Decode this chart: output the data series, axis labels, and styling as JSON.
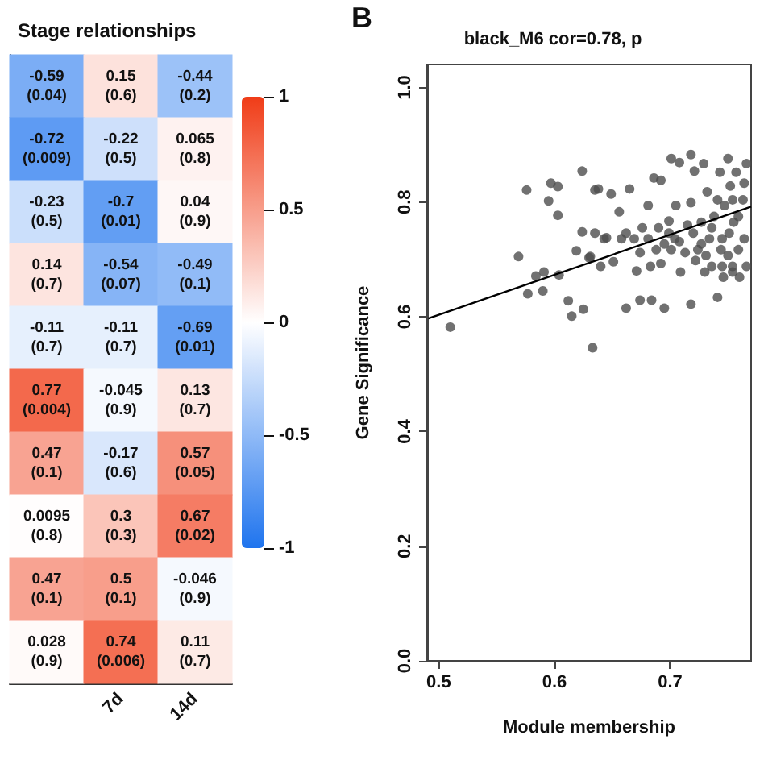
{
  "chart_data": [
    {
      "type": "heatmap",
      "title": "Stage relationships",
      "categories": [
        null,
        "7d",
        "14d"
      ],
      "y_categories": [
        null,
        null,
        null,
        null,
        null,
        null,
        null,
        null,
        null,
        null
      ],
      "cells": [
        [
          -0.59,
          0.15,
          -0.44
        ],
        [
          -0.72,
          -0.22,
          0.065
        ],
        [
          -0.23,
          -0.7,
          0.04
        ],
        [
          0.14,
          -0.54,
          -0.49
        ],
        [
          -0.11,
          -0.11,
          -0.69
        ],
        [
          0.77,
          -0.045,
          0.13
        ],
        [
          0.47,
          -0.17,
          0.57
        ],
        [
          0.0095,
          0.3,
          0.67
        ],
        [
          0.47,
          0.5,
          -0.046
        ],
        [
          0.028,
          0.74,
          0.11
        ]
      ],
      "cell_labels": [
        [
          "-0.59\n(0.04)",
          "0.15\n(0.6)",
          "-0.44\n(0.2)"
        ],
        [
          "-0.72\n(0.009)",
          "-0.22\n(0.5)",
          "0.065\n(0.8)"
        ],
        [
          "-0.23\n(0.5)",
          "-0.7\n(0.01)",
          "0.04\n(0.9)"
        ],
        [
          "0.14\n(0.7)",
          "-0.54\n(0.07)",
          "-0.49\n(0.1)"
        ],
        [
          "-0.11\n(0.7)",
          "-0.11\n(0.7)",
          "-0.69\n(0.01)"
        ],
        [
          "0.77\n(0.004)",
          "-0.045\n(0.9)",
          "0.13\n(0.7)"
        ],
        [
          "0.47\n(0.1)",
          "-0.17\n(0.6)",
          "0.57\n(0.05)"
        ],
        [
          "0.0095\n(0.8)",
          "0.3\n(0.3)",
          "0.67\n(0.02)"
        ],
        [
          "0.47\n(0.1)",
          "0.5\n(0.1)",
          "-0.046\n(0.9)"
        ],
        [
          "0.028\n(0.9)",
          "0.74\n(0.006)",
          "0.11\n(0.7)"
        ]
      ],
      "clim": [
        -1,
        1
      ],
      "cticks": [
        -1,
        -0.5,
        0,
        0.5,
        1
      ],
      "tick_labels": "x"
    },
    {
      "type": "scatter",
      "title": "black_M6 cor=0.78, p",
      "xlabel": "Module membership",
      "ylabel": "Gene Significance",
      "annotations": [
        "B"
      ],
      "xlim": [
        0.49,
        0.77
      ],
      "ylim": [
        0,
        1.04
      ],
      "xticks": [
        0.5,
        0.6,
        0.7
      ],
      "yticks": [
        {
          "value": 0,
          "label": "0.0"
        },
        0.2,
        0.4,
        0.6,
        0.8,
        {
          "value": 1,
          "label": "1.0"
        }
      ],
      "series": [
        {
          "color": "#4d4d4d",
          "marker": "circle",
          "x": [
            0.51,
            0.569,
            0.577,
            0.584,
            0.591,
            0.59,
            0.604,
            0.576,
            0.595,
            0.597,
            0.603,
            0.603,
            0.612,
            0.615,
            0.619,
            0.624,
            0.624,
            0.625,
            0.631,
            0.633,
            0.635,
            0.638,
            0.64,
            0.645,
            0.649,
            0.651,
            0.656,
            0.658,
            0.662,
            0.665,
            0.669,
            0.671,
            0.674,
            0.676,
            0.681,
            0.684,
            0.686,
            0.688,
            0.692,
            0.692,
            0.695,
            0.699,
            0.701,
            0.704,
            0.705,
            0.708,
            0.709,
            0.718,
            0.718,
            0.72,
            0.718,
            0.721,
            0.724,
            0.727,
            0.729,
            0.73,
            0.732,
            0.734,
            0.736,
            0.738,
            0.741,
            0.743,
            0.744,
            0.746,
            0.747,
            0.75,
            0.751,
            0.752,
            0.754,
            0.755,
            0.757,
            0.759,
            0.76,
            0.763,
            0.764,
            0.766,
            0.766,
            0.681,
            0.695,
            0.701,
            0.708,
            0.713,
            0.715,
            0.699,
            0.69,
            0.722,
            0.727,
            0.731,
            0.736,
            0.741,
            0.745,
            0.75,
            0.754,
            0.759,
            0.764,
            0.754,
            0.745,
            0.683,
            0.674,
            0.662,
            0.643,
            0.635,
            0.63
          ],
          "values": [
            0.582,
            0.705,
            0.64,
            0.671,
            0.678,
            0.645,
            0.673,
            0.821,
            0.802,
            0.833,
            0.827,
            0.777,
            0.628,
            0.601,
            0.715,
            0.854,
            0.748,
            0.613,
            0.705,
            0.546,
            0.821,
            0.823,
            0.688,
            0.738,
            0.814,
            0.696,
            0.783,
            0.736,
            0.615,
            0.823,
            0.736,
            0.68,
            0.629,
            0.755,
            0.794,
            0.629,
            0.842,
            0.717,
            0.838,
            0.693,
            0.615,
            0.767,
            0.876,
            0.736,
            0.794,
            0.869,
            0.678,
            0.883,
            0.622,
            0.746,
            0.799,
            0.854,
            0.717,
            0.765,
            0.867,
            0.678,
            0.818,
            0.736,
            0.688,
            0.775,
            0.634,
            0.852,
            0.717,
            0.669,
            0.794,
            0.876,
            0.746,
            0.828,
            0.688,
            0.765,
            0.852,
            0.717,
            0.669,
            0.804,
            0.736,
            0.867,
            0.688,
            0.736,
            0.727,
            0.717,
            0.731,
            0.712,
            0.76,
            0.746,
            0.755,
            0.698,
            0.727,
            0.707,
            0.755,
            0.804,
            0.736,
            0.707,
            0.804,
            0.775,
            0.833,
            0.678,
            0.688,
            0.688,
            0.712,
            0.746,
            0.736,
            0.746,
            0.703
          ]
        },
        {
          "type": "line",
          "marker": "none",
          "color": "#000000",
          "x": [
            0.491,
            0.77
          ],
          "values": [
            0.597,
            0.792
          ]
        }
      ]
    }
  ]
}
